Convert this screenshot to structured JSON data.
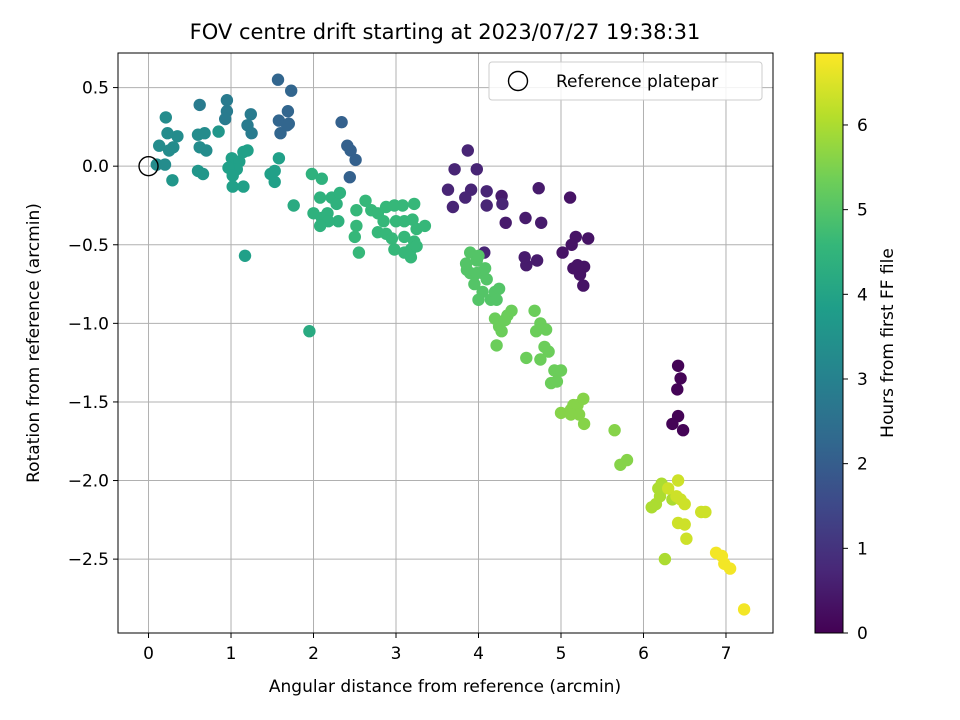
{
  "chart_data": {
    "type": "scatter",
    "title": "FOV centre drift starting at 2023/07/27 19:38:31",
    "xlabel": "Angular distance from reference (arcmin)",
    "ylabel": "Rotation from reference (arcmin)",
    "xlim": [
      -0.37,
      7.57
    ],
    "ylim": [
      -2.97,
      0.72
    ],
    "xticks": [
      0,
      1,
      2,
      3,
      4,
      5,
      6,
      7
    ],
    "yticks": [
      -2.5,
      -2.0,
      -1.5,
      -1.0,
      -0.5,
      0.0,
      0.5
    ],
    "ytick_labels": [
      "−2.5",
      "−2.0",
      "−1.5",
      "−1.0",
      "−0.5",
      "0.0",
      "0.5"
    ],
    "grid": true,
    "legend": {
      "position": "top-right",
      "entries": [
        "Reference platepar"
      ]
    },
    "reference_point": {
      "x": 0.0,
      "y": 0.0,
      "label": "Reference platepar"
    },
    "colorbar": {
      "label": "Hours from first FF file",
      "colormap": "viridis",
      "range": [
        0,
        6.85
      ],
      "ticks": [
        0,
        1,
        2,
        3,
        4,
        5,
        6
      ]
    },
    "points_columns": [
      "x",
      "y",
      "hours"
    ],
    "points": [
      [
        6.42,
        -1.27,
        0.05
      ],
      [
        6.45,
        -1.35,
        0.05
      ],
      [
        6.41,
        -1.42,
        0.05
      ],
      [
        6.42,
        -1.59,
        0.05
      ],
      [
        6.35,
        -1.64,
        0.05
      ],
      [
        6.48,
        -1.68,
        0.05
      ],
      [
        5.27,
        -0.76,
        0.35
      ],
      [
        5.28,
        -0.64,
        0.35
      ],
      [
        5.23,
        -0.69,
        0.35
      ],
      [
        5.15,
        -0.65,
        0.35
      ],
      [
        5.2,
        -0.63,
        0.35
      ],
      [
        5.18,
        -0.45,
        0.35
      ],
      [
        5.13,
        -0.5,
        0.35
      ],
      [
        5.02,
        -0.55,
        0.35
      ],
      [
        5.33,
        -0.46,
        0.35
      ],
      [
        5.11,
        -0.2,
        0.35
      ],
      [
        4.73,
        -0.14,
        0.5
      ],
      [
        4.76,
        -0.36,
        0.5
      ],
      [
        4.57,
        -0.33,
        0.5
      ],
      [
        4.71,
        -0.6,
        0.5
      ],
      [
        4.58,
        -0.63,
        0.5
      ],
      [
        4.56,
        -0.58,
        0.5
      ],
      [
        4.33,
        -0.36,
        0.5
      ],
      [
        4.28,
        -0.19,
        0.5
      ],
      [
        4.29,
        -0.24,
        0.7
      ],
      [
        4.1,
        -0.25,
        0.7
      ],
      [
        4.1,
        -0.16,
        0.7
      ],
      [
        3.98,
        -0.02,
        0.7
      ],
      [
        3.91,
        -0.15,
        0.7
      ],
      [
        3.87,
        0.1,
        0.7
      ],
      [
        3.84,
        -0.2,
        0.7
      ],
      [
        3.63,
        -0.15,
        0.7
      ],
      [
        3.69,
        -0.26,
        0.7
      ],
      [
        3.71,
        -0.02,
        0.7
      ],
      [
        4.07,
        -0.55,
        0.7
      ],
      [
        2.34,
        0.28,
        2.1
      ],
      [
        2.41,
        0.13,
        2.1
      ],
      [
        2.45,
        0.1,
        2.1
      ],
      [
        2.51,
        0.04,
        2.1
      ],
      [
        2.44,
        -0.07,
        2.1
      ],
      [
        1.57,
        0.55,
        2.2
      ],
      [
        1.73,
        0.48,
        2.2
      ],
      [
        1.69,
        0.35,
        2.2
      ],
      [
        1.58,
        0.29,
        2.2
      ],
      [
        1.7,
        0.27,
        2.2
      ],
      [
        1.6,
        0.21,
        2.2
      ],
      [
        1.68,
        0.26,
        2.2
      ],
      [
        0.95,
        0.42,
        2.8
      ],
      [
        0.95,
        0.35,
        2.8
      ],
      [
        0.93,
        0.3,
        2.8
      ],
      [
        1.24,
        0.33,
        2.8
      ],
      [
        1.2,
        0.26,
        2.8
      ],
      [
        1.25,
        0.21,
        2.8
      ],
      [
        0.62,
        0.39,
        2.8
      ],
      [
        0.6,
        0.2,
        3.3
      ],
      [
        0.68,
        0.21,
        3.3
      ],
      [
        0.62,
        0.12,
        3.3
      ],
      [
        0.7,
        0.1,
        3.3
      ],
      [
        0.21,
        0.31,
        3.3
      ],
      [
        0.23,
        0.21,
        3.3
      ],
      [
        0.35,
        0.19,
        3.3
      ],
      [
        0.13,
        0.13,
        3.3
      ],
      [
        0.3,
        0.12,
        3.3
      ],
      [
        0.25,
        0.1,
        3.3
      ],
      [
        0.1,
        0.01,
        3.3
      ],
      [
        0.2,
        0.01,
        3.3
      ],
      [
        0.6,
        -0.03,
        3.6
      ],
      [
        0.66,
        -0.05,
        3.6
      ],
      [
        0.29,
        -0.09,
        3.6
      ],
      [
        0.85,
        0.22,
        3.6
      ],
      [
        1.01,
        0.05,
        3.9
      ],
      [
        1.1,
        0.03,
        3.9
      ],
      [
        1.07,
        -0.02,
        3.9
      ],
      [
        0.97,
        -0.01,
        3.9
      ],
      [
        1.15,
        0.09,
        3.9
      ],
      [
        1.2,
        0.1,
        3.9
      ],
      [
        1.02,
        -0.06,
        3.9
      ],
      [
        1.02,
        -0.13,
        3.9
      ],
      [
        1.15,
        -0.13,
        3.9
      ],
      [
        1.17,
        -0.57,
        3.9
      ],
      [
        1.48,
        -0.05,
        3.9
      ],
      [
        1.53,
        -0.1,
        3.9
      ],
      [
        1.58,
        0.05,
        3.9
      ],
      [
        1.53,
        -0.03,
        3.9
      ],
      [
        1.95,
        -1.05,
        4.2
      ],
      [
        1.76,
        -0.25,
        4.2
      ],
      [
        1.98,
        -0.05,
        4.4
      ],
      [
        2.08,
        -0.2,
        4.4
      ],
      [
        2.0,
        -0.3,
        4.4
      ],
      [
        2.1,
        -0.33,
        4.4
      ],
      [
        2.17,
        -0.3,
        4.4
      ],
      [
        2.22,
        -0.2,
        4.4
      ],
      [
        2.1,
        -0.08,
        4.4
      ],
      [
        2.28,
        -0.24,
        4.4
      ],
      [
        2.3,
        -0.35,
        4.4
      ],
      [
        2.18,
        -0.35,
        4.4
      ],
      [
        2.08,
        -0.38,
        4.4
      ],
      [
        2.32,
        -0.17,
        4.4
      ],
      [
        2.52,
        -0.28,
        4.6
      ],
      [
        2.63,
        -0.22,
        4.6
      ],
      [
        2.7,
        -0.28,
        4.6
      ],
      [
        2.78,
        -0.3,
        4.6
      ],
      [
        2.88,
        -0.26,
        4.6
      ],
      [
        2.85,
        -0.35,
        4.6
      ],
      [
        2.78,
        -0.42,
        4.6
      ],
      [
        2.88,
        -0.43,
        4.6
      ],
      [
        2.95,
        -0.46,
        4.6
      ],
      [
        3.0,
        -0.35,
        4.6
      ],
      [
        3.1,
        -0.35,
        4.6
      ],
      [
        3.2,
        -0.34,
        4.6
      ],
      [
        3.25,
        -0.4,
        4.6
      ],
      [
        3.35,
        -0.38,
        4.6
      ],
      [
        3.1,
        -0.45,
        4.6
      ],
      [
        3.22,
        -0.48,
        4.6
      ],
      [
        3.18,
        -0.53,
        4.6
      ],
      [
        3.1,
        -0.55,
        4.6
      ],
      [
        3.18,
        -0.58,
        4.6
      ],
      [
        3.25,
        -0.51,
        4.6
      ],
      [
        2.98,
        -0.53,
        4.6
      ],
      [
        2.5,
        -0.45,
        4.6
      ],
      [
        2.52,
        -0.38,
        4.6
      ],
      [
        2.55,
        -0.55,
        4.6
      ],
      [
        3.22,
        -0.24,
        4.6
      ],
      [
        3.08,
        -0.25,
        4.6
      ],
      [
        2.98,
        -0.25,
        4.6
      ],
      [
        3.9,
        -0.55,
        5.0
      ],
      [
        3.98,
        -0.6,
        5.0
      ],
      [
        3.85,
        -0.62,
        5.0
      ],
      [
        3.9,
        -0.68,
        5.0
      ],
      [
        3.98,
        -0.68,
        5.0
      ],
      [
        4.05,
        -0.68,
        5.0
      ],
      [
        4.1,
        -0.72,
        5.0
      ],
      [
        3.95,
        -0.75,
        5.0
      ],
      [
        4.05,
        -0.8,
        5.0
      ],
      [
        4.15,
        -0.85,
        5.0
      ],
      [
        4.2,
        -0.8,
        5.0
      ],
      [
        4.25,
        -0.78,
        5.0
      ],
      [
        4.0,
        -0.85,
        5.0
      ],
      [
        4.22,
        -0.85,
        5.0
      ],
      [
        4.08,
        -0.65,
        5.0
      ],
      [
        3.86,
        -0.66,
        5.0
      ],
      [
        4.0,
        -0.57,
        5.0
      ],
      [
        4.4,
        -0.92,
        5.3
      ],
      [
        4.35,
        -0.95,
        5.3
      ],
      [
        4.2,
        -0.97,
        5.3
      ],
      [
        4.25,
        -1.02,
        5.3
      ],
      [
        4.32,
        -0.98,
        5.3
      ],
      [
        4.28,
        -1.05,
        5.3
      ],
      [
        4.22,
        -1.14,
        5.3
      ],
      [
        4.68,
        -0.92,
        5.3
      ],
      [
        4.75,
        -1.0,
        5.3
      ],
      [
        4.82,
        -1.04,
        5.3
      ],
      [
        4.7,
        -1.05,
        5.3
      ],
      [
        4.8,
        -1.15,
        5.3
      ],
      [
        4.85,
        -1.18,
        5.3
      ],
      [
        4.75,
        -1.23,
        5.3
      ],
      [
        4.58,
        -1.22,
        5.3
      ],
      [
        4.92,
        -1.3,
        5.3
      ],
      [
        5.0,
        -1.3,
        5.3
      ],
      [
        4.88,
        -1.38,
        5.3
      ],
      [
        4.95,
        -1.37,
        5.3
      ],
      [
        5.0,
        -1.57,
        5.6
      ],
      [
        5.12,
        -1.55,
        5.6
      ],
      [
        5.15,
        -1.52,
        5.6
      ],
      [
        5.2,
        -1.52,
        5.6
      ],
      [
        5.27,
        -1.48,
        5.6
      ],
      [
        5.22,
        -1.58,
        5.6
      ],
      [
        5.12,
        -1.58,
        5.6
      ],
      [
        5.28,
        -1.64,
        5.6
      ],
      [
        5.65,
        -1.68,
        5.6
      ],
      [
        5.72,
        -1.9,
        5.6
      ],
      [
        5.8,
        -1.87,
        5.6
      ],
      [
        6.1,
        -2.17,
        6.0
      ],
      [
        6.15,
        -2.15,
        6.0
      ],
      [
        6.2,
        -2.1,
        6.0
      ],
      [
        6.18,
        -2.05,
        6.0
      ],
      [
        6.22,
        -2.02,
        6.0
      ],
      [
        6.26,
        -2.5,
        6.0
      ],
      [
        6.35,
        -2.12,
        6.0
      ],
      [
        6.3,
        -2.05,
        6.35
      ],
      [
        6.42,
        -2.0,
        6.35
      ],
      [
        6.45,
        -2.12,
        6.35
      ],
      [
        6.4,
        -2.1,
        6.35
      ],
      [
        6.5,
        -2.15,
        6.35
      ],
      [
        6.42,
        -2.27,
        6.35
      ],
      [
        6.5,
        -2.28,
        6.35
      ],
      [
        6.52,
        -2.37,
        6.35
      ],
      [
        6.7,
        -2.2,
        6.35
      ],
      [
        6.75,
        -2.2,
        6.35
      ],
      [
        6.88,
        -2.46,
        6.75
      ],
      [
        6.95,
        -2.48,
        6.75
      ],
      [
        6.98,
        -2.53,
        6.75
      ],
      [
        7.05,
        -2.56,
        6.75
      ],
      [
        7.22,
        -2.82,
        6.75
      ]
    ]
  }
}
